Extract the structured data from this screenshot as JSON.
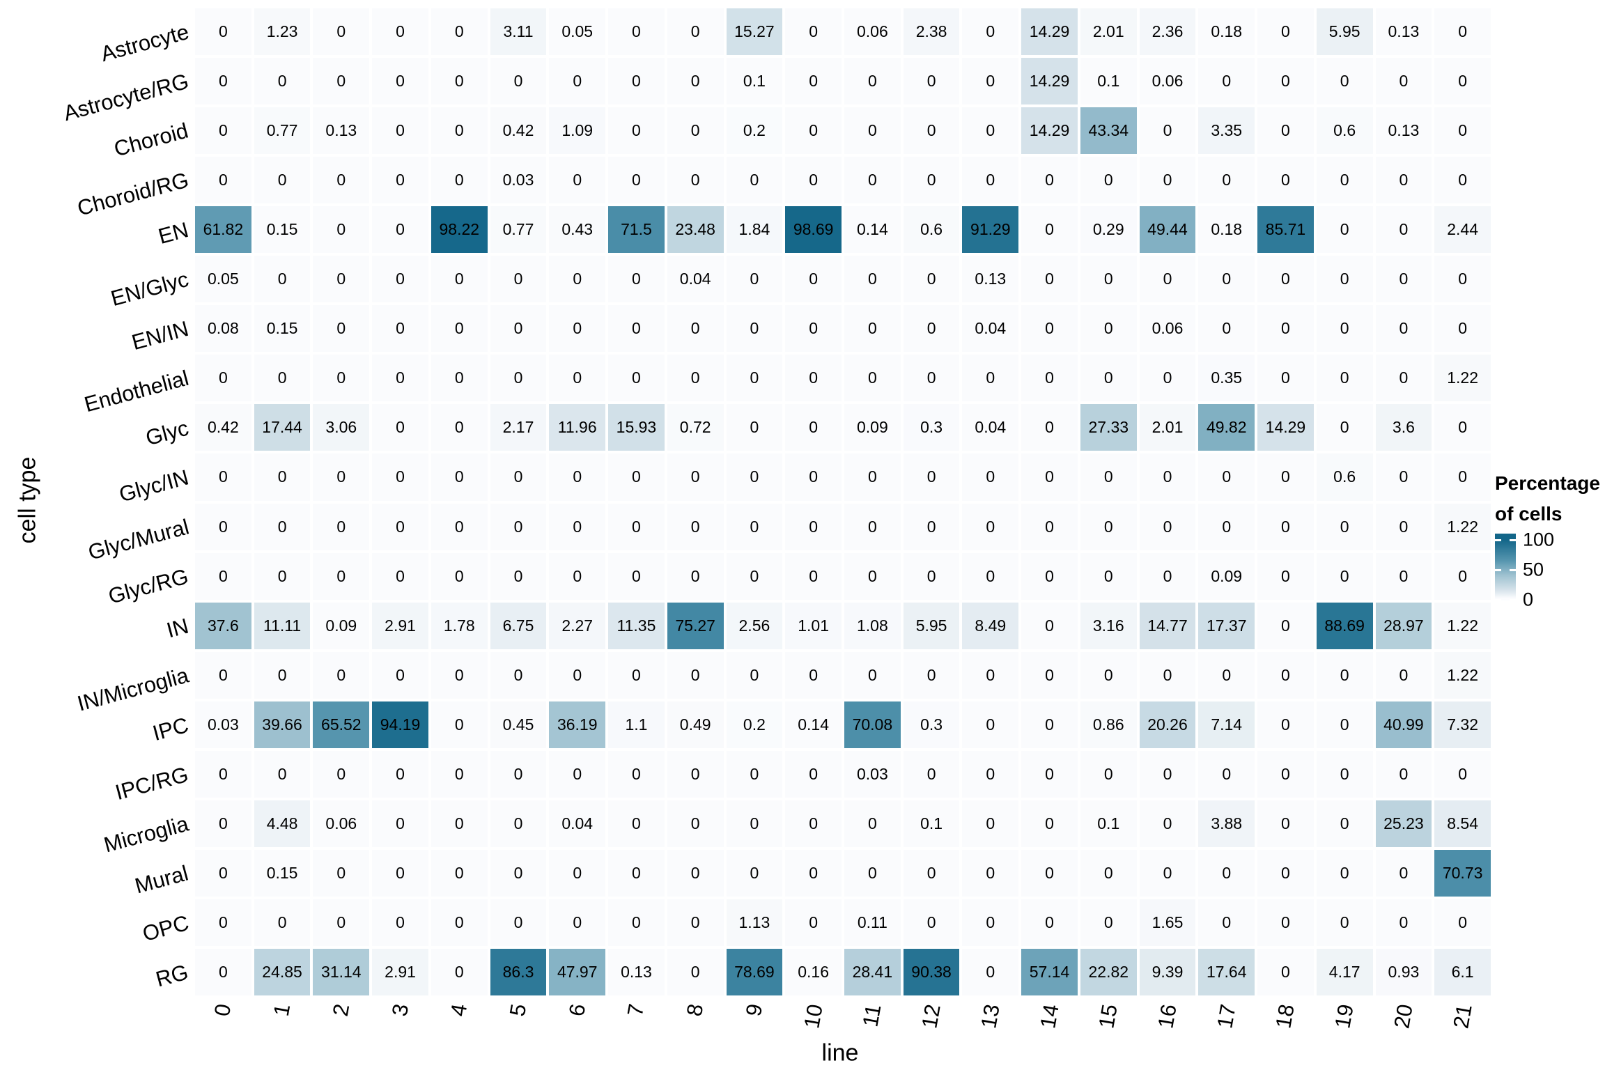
{
  "axes": {
    "x_title": "line",
    "y_title": "cell type"
  },
  "legend": {
    "title_line1": "Percentage",
    "title_line2": "of cells",
    "tick_labels": [
      "100",
      "50",
      "0"
    ]
  },
  "colors": {
    "scale_low": "#FAFBFD",
    "scale_mid": "#9CC0CF",
    "scale_high": "#136689",
    "grid_background": "#FFFFFF",
    "cell_text": "#000000"
  },
  "chart_data": {
    "type": "heatmap",
    "title": "",
    "xlabel": "line",
    "ylabel": "cell type",
    "legend_title": "Percentage of cells",
    "color_range": [
      0,
      100
    ],
    "legend_ticks": [
      100,
      50,
      0
    ],
    "grid": false,
    "legend_position": "right",
    "columns": [
      "0",
      "1",
      "2",
      "3",
      "4",
      "5",
      "6",
      "7",
      "8",
      "9",
      "10",
      "11",
      "12",
      "13",
      "14",
      "15",
      "16",
      "17",
      "18",
      "19",
      "20",
      "21"
    ],
    "rows": [
      "Astrocyte",
      "Astrocyte/RG",
      "Choroid",
      "Choroid/RG",
      "EN",
      "EN/Glyc",
      "EN/IN",
      "Endothelial",
      "Glyc",
      "Glyc/IN",
      "Glyc/Mural",
      "Glyc/RG",
      "IN",
      "IN/Microglia",
      "IPC",
      "IPC/RG",
      "Microglia",
      "Mural",
      "OPC",
      "RG"
    ],
    "values": [
      [
        0,
        1.23,
        0,
        0,
        0,
        3.11,
        0.05,
        0,
        0,
        15.27,
        0,
        0.06,
        2.38,
        0,
        14.29,
        2.01,
        2.36,
        0.18,
        0,
        5.95,
        0.13,
        0
      ],
      [
        0,
        0,
        0,
        0,
        0,
        0,
        0,
        0,
        0,
        0.1,
        0,
        0,
        0,
        0,
        14.29,
        0.1,
        0.06,
        0,
        0,
        0,
        0,
        0
      ],
      [
        0,
        0.77,
        0.13,
        0,
        0,
        0.42,
        1.09,
        0,
        0,
        0.2,
        0,
        0,
        0,
        0,
        14.29,
        43.34,
        0,
        3.35,
        0,
        0.6,
        0.13,
        0
      ],
      [
        0,
        0,
        0,
        0,
        0,
        0.03,
        0,
        0,
        0,
        0,
        0,
        0,
        0,
        0,
        0,
        0,
        0,
        0,
        0,
        0,
        0,
        0
      ],
      [
        61.82,
        0.15,
        0,
        0,
        98.22,
        0.77,
        0.43,
        71.5,
        23.48,
        1.84,
        98.69,
        0.14,
        0.6,
        91.29,
        0,
        0.29,
        49.44,
        0.18,
        85.71,
        0,
        0,
        2.44
      ],
      [
        0.05,
        0,
        0,
        0,
        0,
        0,
        0,
        0,
        0.04,
        0,
        0,
        0,
        0,
        0.13,
        0,
        0,
        0,
        0,
        0,
        0,
        0,
        0
      ],
      [
        0.08,
        0.15,
        0,
        0,
        0,
        0,
        0,
        0,
        0,
        0,
        0,
        0,
        0,
        0.04,
        0,
        0,
        0.06,
        0,
        0,
        0,
        0,
        0
      ],
      [
        0,
        0,
        0,
        0,
        0,
        0,
        0,
        0,
        0,
        0,
        0,
        0,
        0,
        0,
        0,
        0,
        0,
        0.35,
        0,
        0,
        0,
        1.22
      ],
      [
        0.42,
        17.44,
        3.06,
        0,
        0,
        2.17,
        11.96,
        15.93,
        0.72,
        0,
        0,
        0.09,
        0.3,
        0.04,
        0,
        27.33,
        2.01,
        49.82,
        14.29,
        0,
        3.6,
        0
      ],
      [
        0,
        0,
        0,
        0,
        0,
        0,
        0,
        0,
        0,
        0,
        0,
        0,
        0,
        0,
        0,
        0,
        0,
        0,
        0,
        0.6,
        0,
        0
      ],
      [
        0,
        0,
        0,
        0,
        0,
        0,
        0,
        0,
        0,
        0,
        0,
        0,
        0,
        0,
        0,
        0,
        0,
        0,
        0,
        0,
        0,
        1.22
      ],
      [
        0,
        0,
        0,
        0,
        0,
        0,
        0,
        0,
        0,
        0,
        0,
        0,
        0,
        0,
        0,
        0,
        0,
        0.09,
        0,
        0,
        0,
        0
      ],
      [
        37.6,
        11.11,
        0.09,
        2.91,
        1.78,
        6.75,
        2.27,
        11.35,
        75.27,
        2.56,
        1.01,
        1.08,
        5.95,
        8.49,
        0,
        3.16,
        14.77,
        17.37,
        0,
        88.69,
        28.97,
        1.22
      ],
      [
        0,
        0,
        0,
        0,
        0,
        0,
        0,
        0,
        0,
        0,
        0,
        0,
        0,
        0,
        0,
        0,
        0,
        0,
        0,
        0,
        0,
        1.22
      ],
      [
        0.03,
        39.66,
        65.52,
        94.19,
        0,
        0.45,
        36.19,
        1.1,
        0.49,
        0.2,
        0.14,
        70.08,
        0.3,
        0,
        0,
        0.86,
        20.26,
        7.14,
        0,
        0,
        40.99,
        7.32
      ],
      [
        0,
        0,
        0,
        0,
        0,
        0,
        0,
        0,
        0,
        0,
        0,
        0.03,
        0,
        0,
        0,
        0,
        0,
        0,
        0,
        0,
        0,
        0
      ],
      [
        0,
        4.48,
        0.06,
        0,
        0,
        0,
        0.04,
        0,
        0,
        0,
        0,
        0,
        0.1,
        0,
        0,
        0.1,
        0,
        3.88,
        0,
        0,
        25.23,
        8.54
      ],
      [
        0,
        0.15,
        0,
        0,
        0,
        0,
        0,
        0,
        0,
        0,
        0,
        0,
        0,
        0,
        0,
        0,
        0,
        0,
        0,
        0,
        0,
        70.73
      ],
      [
        0,
        0,
        0,
        0,
        0,
        0,
        0,
        0,
        0,
        1.13,
        0,
        0.11,
        0,
        0,
        0,
        0,
        1.65,
        0,
        0,
        0,
        0,
        0
      ],
      [
        0,
        24.85,
        31.14,
        2.91,
        0,
        86.3,
        47.97,
        0.13,
        0,
        78.69,
        0.16,
        28.41,
        90.38,
        0,
        57.14,
        22.82,
        9.39,
        17.64,
        0,
        4.17,
        0.93,
        6.1
      ]
    ]
  }
}
